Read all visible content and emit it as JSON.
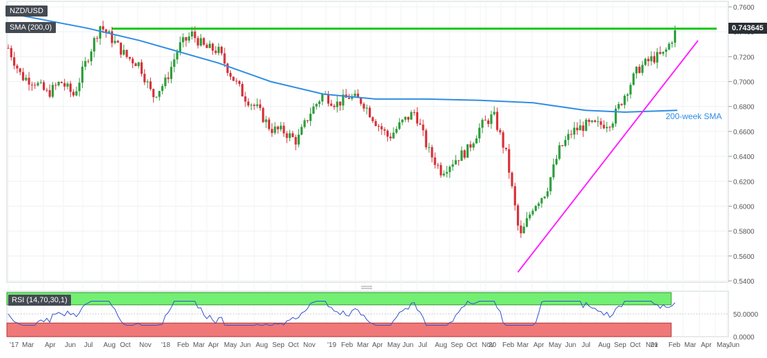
{
  "chart_data": {
    "type": "candlestick",
    "symbol": "NZD/USD",
    "timeframe": "weekly",
    "last_price": "0.743645",
    "indicators": {
      "sma_label": "SMA (200,0)",
      "sma_annotation": "200-week SMA",
      "rsi_label": "RSI (14,70,30,1)"
    },
    "y_axis": {
      "ticks": [
        "0.7600",
        "0.7400",
        "0.7200",
        "0.7000",
        "0.6800",
        "0.6600",
        "0.6400",
        "0.6200",
        "0.6000",
        "0.5800",
        "0.5600",
        "0.5400"
      ],
      "range": [
        0.54,
        0.76
      ]
    },
    "rsi_axis": {
      "ticks": [
        "50.0000",
        "0.0000"
      ],
      "range": [
        0,
        100
      ],
      "overbought": 70,
      "oversold": 30
    },
    "x_axis": {
      "ticks": [
        "'17",
        "Mar",
        "Apr",
        "Jun",
        "Jul",
        "Aug",
        "Oct",
        "Nov",
        "'18",
        "Feb",
        "Mar",
        "Apr",
        "May",
        "Jun",
        "Aug",
        "Sep",
        "Oct",
        "Nov",
        "'19",
        "Feb",
        "Mar",
        "Apr",
        "May",
        "Jun",
        "Jul",
        "Aug",
        "Sep",
        "Oct",
        "Nov",
        "'20",
        "Feb",
        "Mar",
        "Apr",
        "May",
        "Jun",
        "Jul",
        "Aug",
        "Sep",
        "Oct",
        "Nov",
        "'21",
        "Feb",
        "Mar",
        "Apr",
        "May",
        "Jun"
      ]
    },
    "resistance_level": 0.7425,
    "support_line": {
      "from": [
        "2020-03",
        0.547
      ],
      "to": [
        "2021-03",
        0.733
      ]
    },
    "sma200": [
      [
        "2016-12",
        0.755
      ],
      [
        "2017-06",
        0.743
      ],
      [
        "2017-10",
        0.733
      ],
      [
        "2018-04",
        0.715
      ],
      [
        "2018-08",
        0.7
      ],
      [
        "2018-12",
        0.69
      ],
      [
        "2019-04",
        0.686
      ],
      [
        "2019-08",
        0.686
      ],
      [
        "2019-12",
        0.685
      ],
      [
        "2020-04",
        0.683
      ],
      [
        "2020-08",
        0.677
      ],
      [
        "2020-11",
        0.6755
      ],
      [
        "2021-03",
        0.677
      ]
    ],
    "price_path": [
      [
        "2016-12",
        0.727
      ],
      [
        "2017-01",
        0.704
      ],
      [
        "2017-02",
        0.7
      ],
      [
        "2017-03",
        0.69
      ],
      [
        "2017-04",
        0.7
      ],
      [
        "2017-05",
        0.689
      ],
      [
        "2017-06",
        0.718
      ],
      [
        "2017-07",
        0.745
      ],
      [
        "2017-08",
        0.733
      ],
      [
        "2017-09",
        0.72
      ],
      [
        "2017-10",
        0.714
      ],
      [
        "2017-11",
        0.688
      ],
      [
        "2017-12",
        0.7
      ],
      [
        "2018-01",
        0.728
      ],
      [
        "2018-02",
        0.738
      ],
      [
        "2018-03",
        0.727
      ],
      [
        "2018-04",
        0.725
      ],
      [
        "2018-05",
        0.705
      ],
      [
        "2018-06",
        0.688
      ],
      [
        "2018-07",
        0.678
      ],
      [
        "2018-08",
        0.662
      ],
      [
        "2018-09",
        0.66
      ],
      [
        "2018-10",
        0.652
      ],
      [
        "2018-11",
        0.675
      ],
      [
        "2018-12",
        0.69
      ],
      [
        "2019-01",
        0.682
      ],
      [
        "2019-02",
        0.688
      ],
      [
        "2019-03",
        0.684
      ],
      [
        "2019-04",
        0.668
      ],
      [
        "2019-05",
        0.655
      ],
      [
        "2019-06",
        0.667
      ],
      [
        "2019-07",
        0.676
      ],
      [
        "2019-08",
        0.645
      ],
      [
        "2019-09",
        0.628
      ],
      [
        "2019-10",
        0.637
      ],
      [
        "2019-11",
        0.645
      ],
      [
        "2019-12",
        0.664
      ],
      [
        "2020-01",
        0.673
      ],
      [
        "2020-02",
        0.64
      ],
      [
        "2020-03",
        0.574
      ],
      [
        "2020-04",
        0.6
      ],
      [
        "2020-05",
        0.612
      ],
      [
        "2020-06",
        0.645
      ],
      [
        "2020-07",
        0.66
      ],
      [
        "2020-08",
        0.665
      ],
      [
        "2020-09",
        0.665
      ],
      [
        "2020-10",
        0.668
      ],
      [
        "2020-11",
        0.69
      ],
      [
        "2020-12",
        0.71
      ],
      [
        "2021-01",
        0.718
      ],
      [
        "2021-02",
        0.722
      ],
      [
        "2021-03",
        0.743
      ]
    ]
  }
}
